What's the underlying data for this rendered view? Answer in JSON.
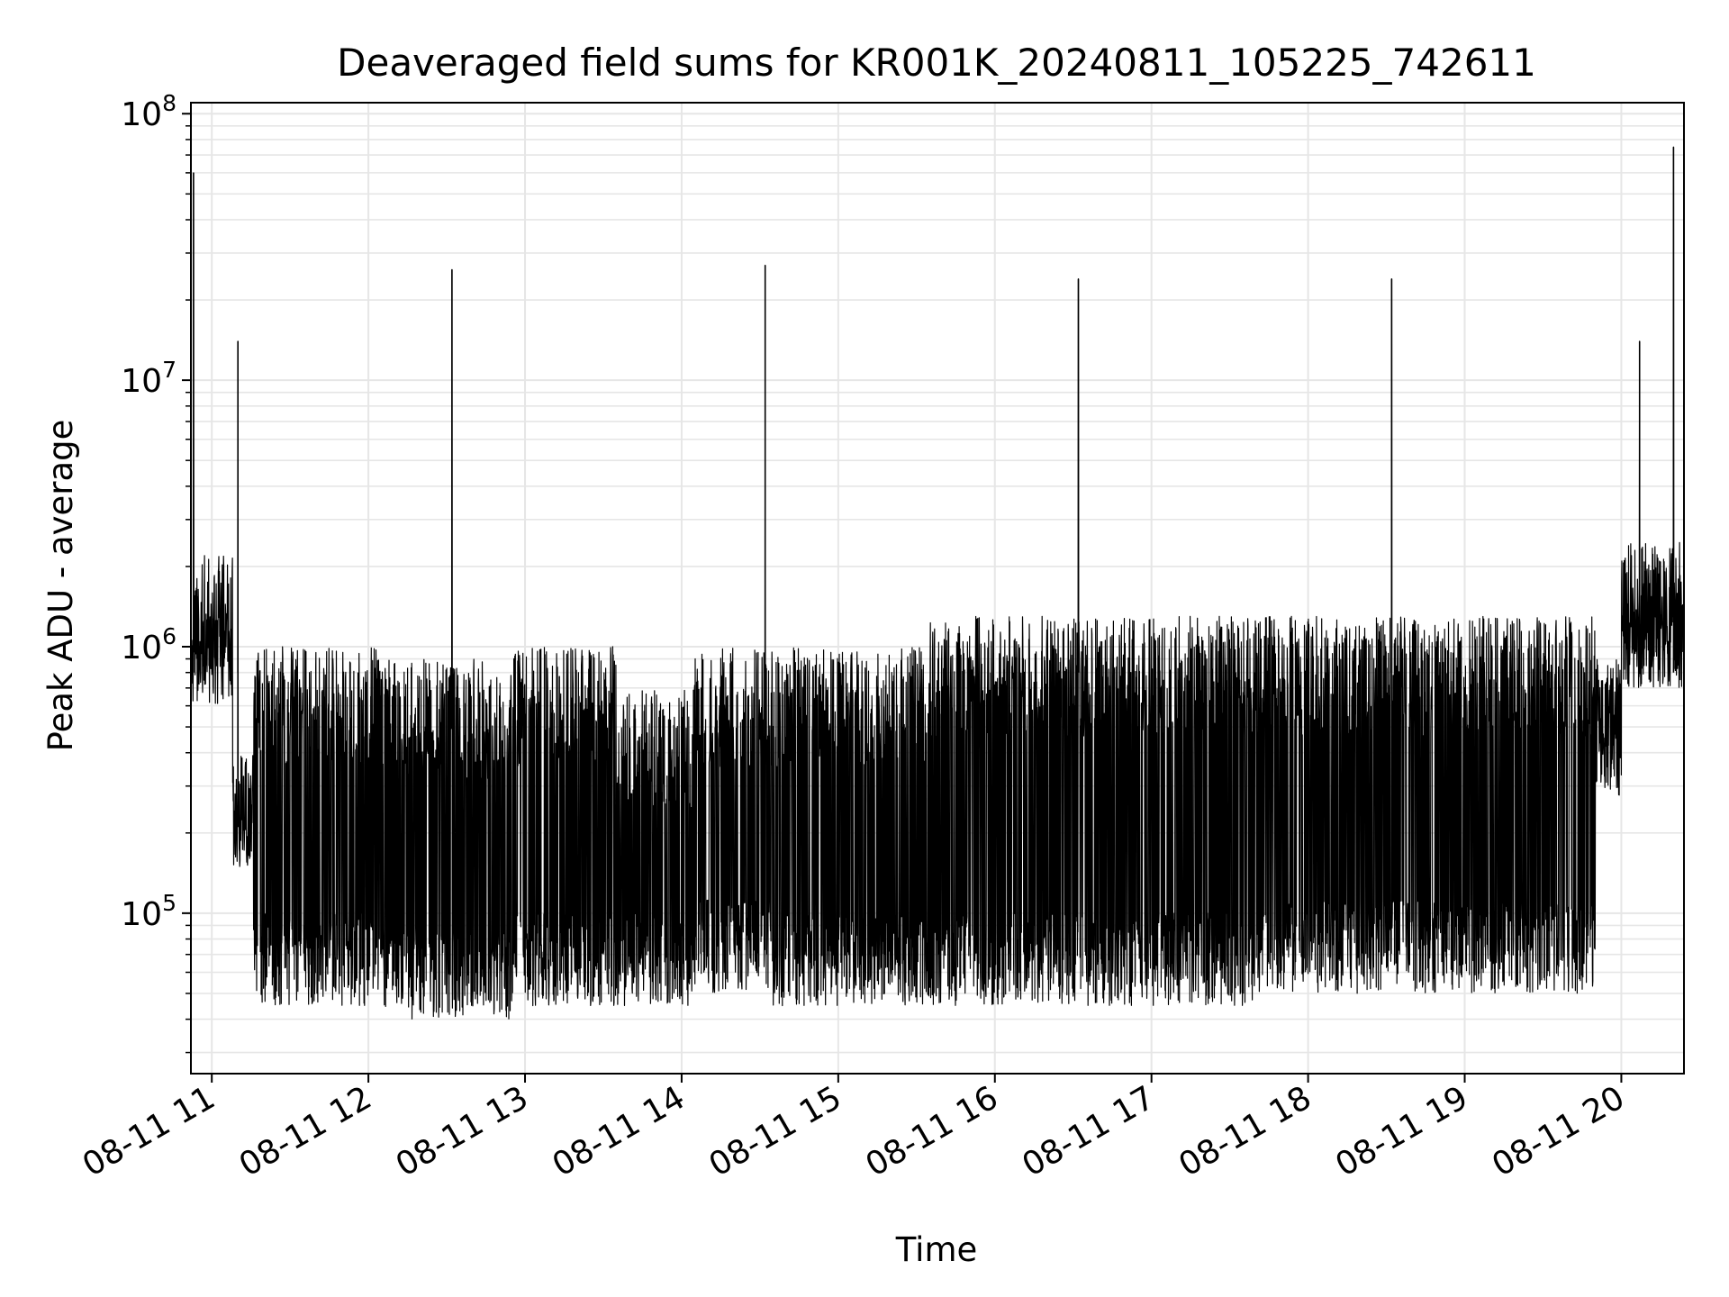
{
  "chart_data": {
    "type": "line",
    "title": "Deaveraged field sums for KR001K_20240811_105225_742611",
    "xlabel": "Time",
    "ylabel": "Peak ADU - average",
    "x_scale": "time",
    "y_scale": "log",
    "xlim": [
      "2024-08-11 10:52",
      "2024-08-11 20:24"
    ],
    "ylim": [
      25000,
      110000000
    ],
    "grid": {
      "major": true,
      "minor_y": true
    },
    "line_color": "#000000",
    "grid_color": "#e6e6e6",
    "x_ticks": [
      "08-11 11",
      "08-11 12",
      "08-11 13",
      "08-11 14",
      "08-11 15",
      "08-11 16",
      "08-11 17",
      "08-11 18",
      "08-11 19",
      "08-11 20"
    ],
    "y_ticks": [
      {
        "value": 100000,
        "base": "10",
        "exp": "5"
      },
      {
        "value": 1000000,
        "base": "10",
        "exp": "6"
      },
      {
        "value": 10000000,
        "base": "10",
        "exp": "7"
      },
      {
        "value": 100000000,
        "base": "10",
        "exp": "8"
      }
    ],
    "envelope_segments": [
      {
        "start": "10:52",
        "end": "11:08",
        "low": 600000,
        "high": 2200000
      },
      {
        "start": "11:08",
        "end": "11:16",
        "low": 150000,
        "high": 400000
      },
      {
        "start": "11:16",
        "end": "12:05",
        "low": 45000,
        "high": 1000000
      },
      {
        "start": "12:05",
        "end": "12:55",
        "low": 40000,
        "high": 900000
      },
      {
        "start": "12:55",
        "end": "13:35",
        "low": 45000,
        "high": 1000000
      },
      {
        "start": "13:35",
        "end": "14:05",
        "low": 45000,
        "high": 700000
      },
      {
        "start": "14:05",
        "end": "14:35",
        "low": 50000,
        "high": 1000000
      },
      {
        "start": "14:35",
        "end": "15:35",
        "low": 45000,
        "high": 1000000
      },
      {
        "start": "15:35",
        "end": "17:40",
        "low": 45000,
        "high": 1300000
      },
      {
        "start": "17:40",
        "end": "18:55",
        "low": 50000,
        "high": 1300000
      },
      {
        "start": "18:55",
        "end": "19:50",
        "low": 50000,
        "high": 1300000
      },
      {
        "start": "19:50",
        "end": "20:00",
        "low": 270000,
        "high": 900000
      },
      {
        "start": "20:00",
        "end": "20:24",
        "low": 700000,
        "high": 2500000
      }
    ],
    "peaks": [
      {
        "time": "10:53",
        "value": 60000000
      },
      {
        "time": "11:10",
        "value": 14000000
      },
      {
        "time": "12:32",
        "value": 26000000
      },
      {
        "time": "14:32",
        "value": 27000000
      },
      {
        "time": "16:32",
        "value": 24000000
      },
      {
        "time": "18:32",
        "value": 24000000
      },
      {
        "time": "20:07",
        "value": 14000000
      },
      {
        "time": "20:20",
        "value": 75000000
      }
    ]
  }
}
